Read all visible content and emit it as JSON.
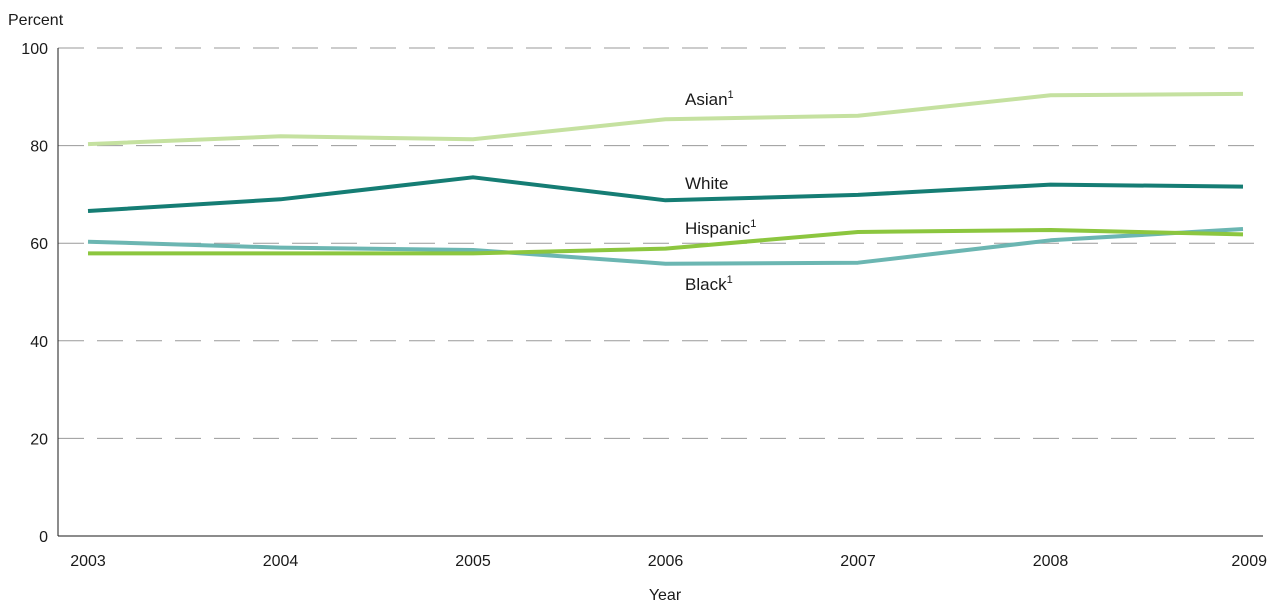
{
  "chart_data": {
    "type": "line",
    "ylabel": "Percent",
    "xlabel": "Year",
    "ylim": [
      0,
      100
    ],
    "yticks": [
      0,
      20,
      40,
      60,
      80,
      100
    ],
    "grid": true,
    "categories": [
      "2003",
      "2004",
      "2005",
      "2006",
      "2007",
      "2008",
      "2009"
    ],
    "series": [
      {
        "name": "Asian",
        "footnote": "1",
        "color": "#c5e1a0",
        "values": [
          80.3,
          81.9,
          81.3,
          85.4,
          86.1,
          90.3,
          90.6
        ]
      },
      {
        "name": "White",
        "footnote": "",
        "color": "#157d74",
        "values": [
          66.6,
          69.0,
          73.5,
          68.8,
          69.9,
          72.0,
          71.6
        ]
      },
      {
        "name": "Hispanic",
        "footnote": "1",
        "color": "#8cc63f",
        "values": [
          57.9,
          57.9,
          57.9,
          58.9,
          62.3,
          62.7,
          61.8
        ]
      },
      {
        "name": "Black",
        "footnote": "1",
        "color": "#6bb6b2",
        "values": [
          60.3,
          59.1,
          58.6,
          55.8,
          56.0,
          60.6,
          62.9
        ]
      }
    ]
  }
}
